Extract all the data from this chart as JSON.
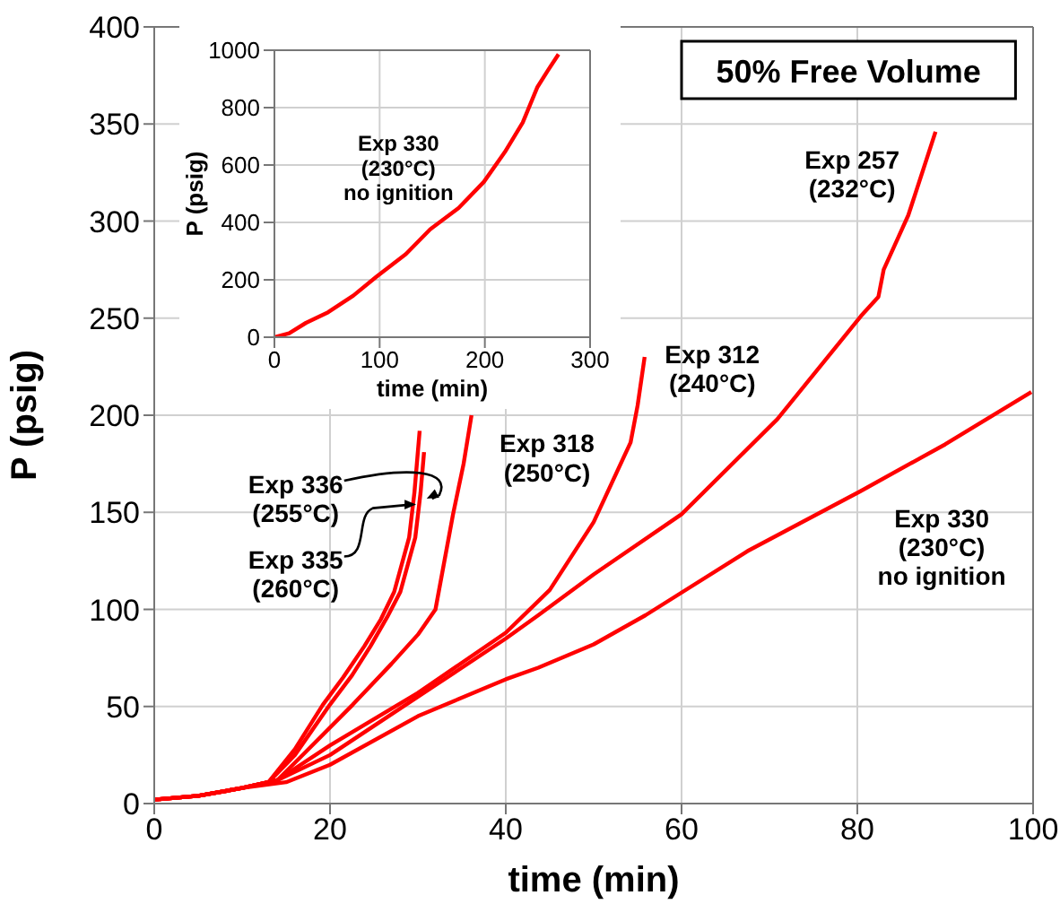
{
  "chart_data": [
    {
      "type": "line",
      "title": "50% Free Volume",
      "xlabel": "time (min)",
      "ylabel": "P (psig)",
      "xlim": [
        0,
        100
      ],
      "xticks": [
        0,
        20,
        40,
        60,
        80,
        100
      ],
      "ylim": [
        0,
        400
      ],
      "yticks": [
        0,
        50,
        100,
        150,
        200,
        250,
        300,
        350,
        400
      ],
      "grid": true,
      "series": [
        {
          "color": "#ff0000",
          "x": [
            0,
            5,
            10,
            13,
            16,
            19.2,
            21.5,
            23.9,
            25.8,
            27.3,
            29,
            29.6,
            30.2
          ],
          "values": [
            2,
            4,
            8,
            11,
            28,
            51,
            65,
            81,
            95,
            109,
            137,
            160,
            192
          ]
        },
        {
          "color": "#ff0000",
          "x": [
            0,
            5,
            10,
            13,
            16,
            20,
            22.5,
            24.6,
            26.5,
            28,
            29.7,
            30.3,
            30.7
          ],
          "values": [
            2,
            4,
            8,
            11,
            25,
            51,
            66,
            81,
            96,
            109,
            137,
            160,
            181
          ]
        },
        {
          "color": "#ff0000",
          "x": [
            0,
            5,
            10,
            14,
            17.1,
            22.6,
            27,
            30,
            32,
            34,
            35.2,
            36.1
          ],
          "values": [
            2,
            4,
            8,
            12,
            26,
            51,
            72,
            87,
            100,
            149,
            175,
            200
          ]
        },
        {
          "color": "#ff0000",
          "x": [
            0,
            5,
            10,
            14,
            20,
            30,
            40,
            45,
            50,
            54.2,
            55,
            55.8
          ],
          "values": [
            2,
            4,
            8,
            12,
            30,
            57,
            88,
            110,
            145,
            186,
            205,
            230
          ]
        },
        {
          "color": "#ff0000",
          "x": [
            0,
            5,
            10,
            14,
            20,
            30,
            40,
            43.7,
            50,
            60,
            70.9,
            80.4,
            82.4,
            83,
            85.8,
            88.9
          ],
          "values": [
            2,
            4,
            8,
            12,
            25,
            55,
            85,
            97,
            118,
            149,
            198,
            251,
            261,
            275,
            303,
            346
          ]
        },
        {
          "color": "#ff0000",
          "x": [
            0,
            5,
            10,
            15,
            20,
            30,
            40,
            43.7,
            50,
            55.9,
            67.5,
            80.4,
            90,
            99.8
          ],
          "values": [
            2,
            4,
            8,
            11,
            20,
            45,
            64,
            70,
            82,
            97,
            130,
            161,
            185,
            212
          ]
        }
      ],
      "annotations": [
        {
          "text": "Exp 336\n(255°C)",
          "x": 31,
          "y": 157
        },
        {
          "text": "Exp 335\n(260°C)",
          "x": 29.8,
          "y": 154
        },
        "Exp 318\n(250°C)",
        "Exp 312\n(240°C)",
        "Exp 257\n(232°C)",
        "Exp 330\n(230°C)\nno ignition"
      ]
    },
    {
      "type": "line",
      "xlabel": "time (min)",
      "ylabel": "P (psig)",
      "xlim": [
        0,
        300
      ],
      "xticks": [
        0,
        100,
        200,
        300
      ],
      "ylim": [
        0,
        1000
      ],
      "yticks": [
        0,
        200,
        400,
        600,
        800,
        1000
      ],
      "grid": true,
      "series": [
        {
          "color": "#ff0000",
          "x": [
            0,
            14,
            30,
            51,
            75,
            97,
            125,
            148,
            175,
            199,
            219,
            236,
            250,
            260,
            270
          ],
          "values": [
            0,
            14,
            50,
            87,
            145,
            211,
            290,
            376,
            450,
            541,
            645,
            748,
            872,
            930,
            986
          ]
        }
      ],
      "annotations": [
        "Exp 330\n(230°C)\nno ignition"
      ]
    }
  ]
}
